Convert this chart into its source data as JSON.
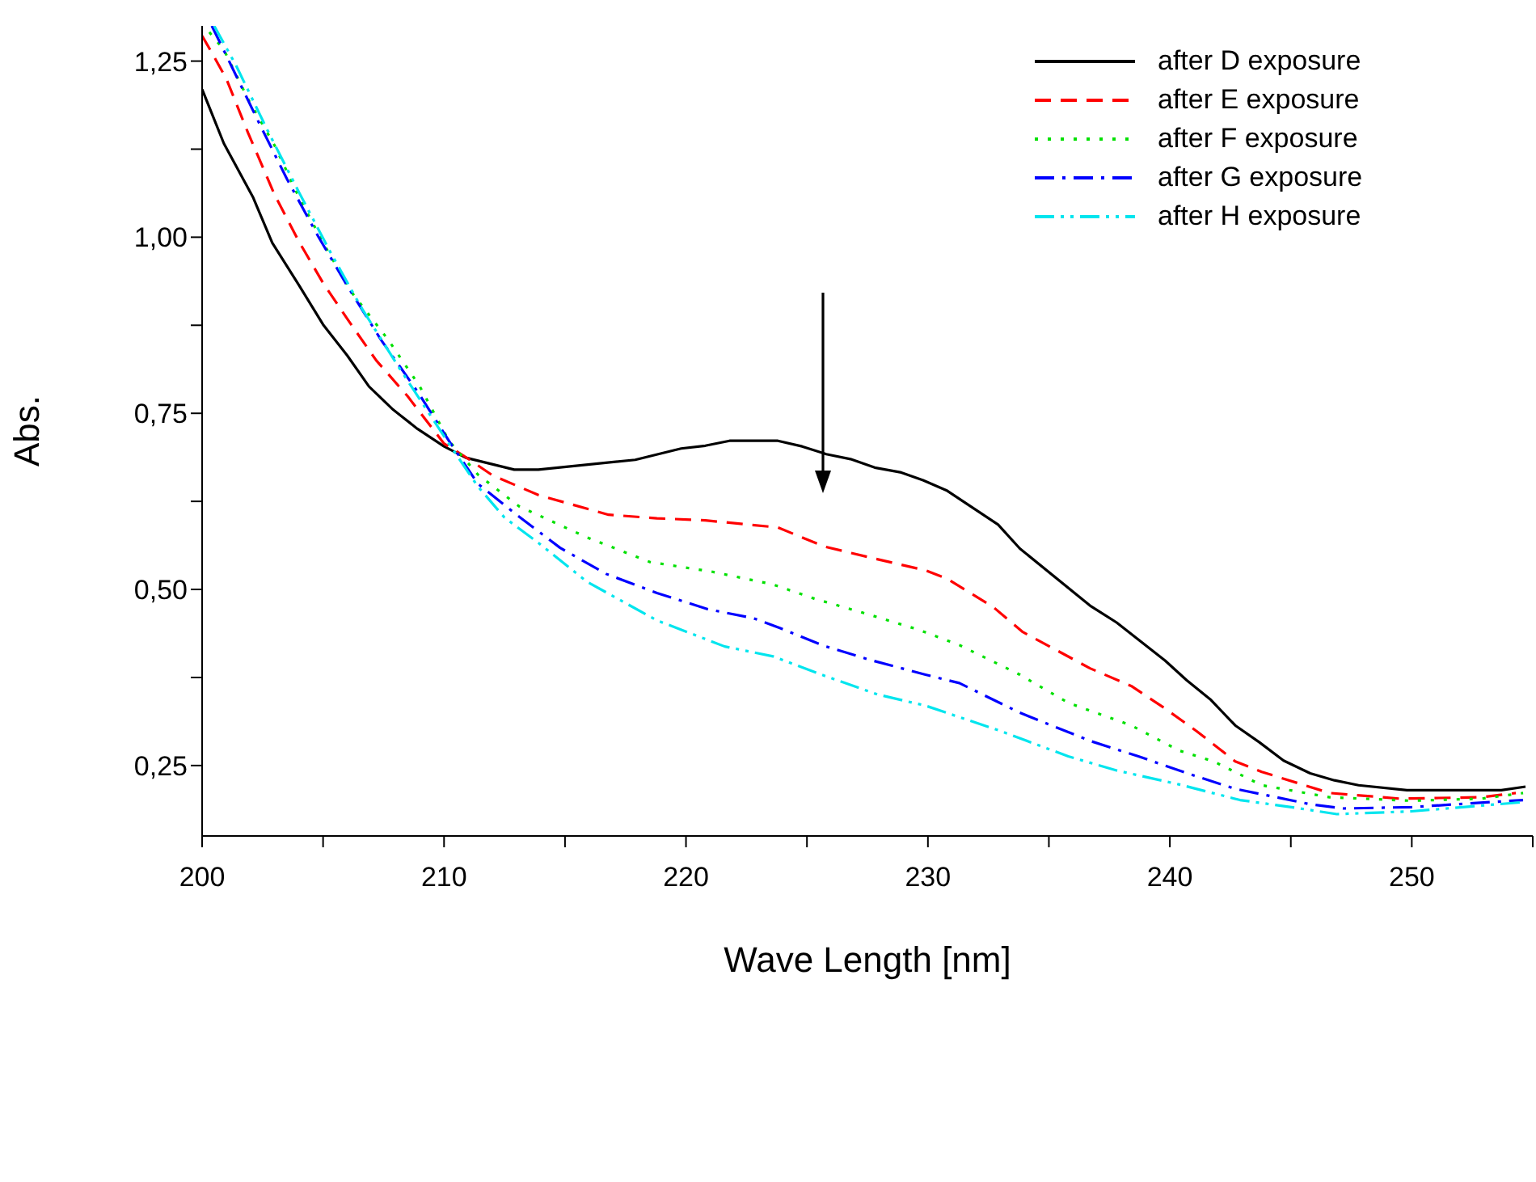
{
  "chart_data": {
    "type": "line",
    "xlabel": "Wave Length [nm]",
    "ylabel": "Abs.",
    "xlim": [
      200,
      255
    ],
    "ylim": [
      0.15,
      1.3
    ],
    "xticks": [
      200,
      {
        "value": 205,
        "label": null
      },
      210,
      {
        "value": 215,
        "label": null
      },
      220,
      {
        "value": 225,
        "label": null
      },
      230,
      {
        "value": 235,
        "label": null
      },
      240,
      {
        "value": 245,
        "label": null
      },
      250,
      {
        "value": 255,
        "label": null
      }
    ],
    "yticks": [
      {
        "value": 0.25,
        "label": "0,25"
      },
      {
        "value": 0.375,
        "label": null
      },
      {
        "value": 0.5,
        "label": "0,50"
      },
      {
        "value": 0.625,
        "label": null
      },
      {
        "value": 0.75,
        "label": "0,75"
      },
      {
        "value": 0.875,
        "label": null
      },
      {
        "value": 1.0,
        "label": "1,00"
      },
      {
        "value": 1.125,
        "label": null
      },
      {
        "value": 1.25,
        "label": "1,25"
      }
    ],
    "legend": "top right",
    "marker": "none",
    "series": [
      {
        "name": "after D exposure",
        "color": "#000000",
        "line_style": "solid",
        "x": [
          200,
          200.9,
          202.1,
          202.9,
          204,
          205,
          206,
          206.9,
          207.9,
          208.9,
          210,
          210.9,
          212.9,
          213.9,
          217.9,
          219.8,
          220.8,
          221.8,
          223.8,
          224.8,
          225.8,
          226.8,
          227.8,
          228.9,
          229.8,
          230.8,
          232.9,
          233.8,
          236.7,
          237.8,
          238.8,
          239.8,
          240.7,
          241.7,
          242.7,
          243.7,
          244.7,
          245.8,
          246.8,
          247.8,
          249.8,
          253.7,
          254.7
        ],
        "values": [
          1.21,
          1.133,
          1.057,
          0.992,
          0.932,
          0.876,
          0.832,
          0.788,
          0.755,
          0.728,
          0.703,
          0.687,
          0.67,
          0.67,
          0.684,
          0.7,
          0.704,
          0.711,
          0.711,
          0.703,
          0.692,
          0.685,
          0.673,
          0.666,
          0.655,
          0.64,
          0.592,
          0.558,
          0.477,
          0.453,
          0.426,
          0.399,
          0.371,
          0.343,
          0.307,
          0.283,
          0.257,
          0.239,
          0.229,
          0.222,
          0.215,
          0.215,
          0.22
        ]
      },
      {
        "name": "after E exposure",
        "color": "#ff0000",
        "line_style": "dashed",
        "x": [
          200,
          200.4,
          201,
          201.9,
          203,
          204,
          205,
          206,
          207.2,
          208.5,
          210,
          210.8,
          212,
          213.9,
          216.8,
          218.8,
          220.8,
          223.8,
          225.7,
          227.9,
          229.9,
          230.8,
          232.7,
          233.9,
          236.7,
          238.4,
          239.8,
          241.1,
          242.7,
          243.8,
          246.6,
          249.5,
          252.9,
          254.3
        ],
        "values": [
          1.286,
          1.262,
          1.225,
          1.148,
          1.06,
          0.994,
          0.935,
          0.884,
          0.825,
          0.774,
          0.707,
          0.69,
          0.662,
          0.634,
          0.606,
          0.601,
          0.598,
          0.588,
          0.561,
          0.543,
          0.527,
          0.515,
          0.475,
          0.44,
          0.388,
          0.363,
          0.331,
          0.299,
          0.256,
          0.241,
          0.211,
          0.203,
          0.205,
          0.211
        ]
      },
      {
        "name": "after F exposure",
        "color": "#00e000",
        "line_style": "dotted",
        "x": [
          200.3,
          200.9,
          201.9,
          203,
          204,
          205.1,
          206.2,
          207.7,
          209,
          210.2,
          211.4,
          213.1,
          215.9,
          218.5,
          221.1,
          223.6,
          225.3,
          227.3,
          229.6,
          231.3,
          233.8,
          235.8,
          238.4,
          240.4,
          241.8,
          243.8,
          246.6,
          250,
          252.9,
          254.6
        ],
        "values": [
          1.291,
          1.266,
          1.196,
          1.13,
          1.057,
          0.986,
          0.921,
          0.854,
          0.788,
          0.711,
          0.663,
          0.618,
          0.574,
          0.539,
          0.525,
          0.507,
          0.487,
          0.467,
          0.443,
          0.421,
          0.379,
          0.339,
          0.307,
          0.271,
          0.256,
          0.222,
          0.205,
          0.2,
          0.203,
          0.211
        ]
      },
      {
        "name": "after G exposure",
        "color": "#0000ff",
        "line_style": "dashdot",
        "x": [
          200.4,
          201.1,
          202.3,
          203.5,
          204.8,
          206,
          207.4,
          208.9,
          210.2,
          211.4,
          213,
          214.8,
          216.7,
          218.8,
          220.9,
          222.8,
          223.9,
          225.7,
          227.6,
          229.9,
          231.3,
          233.8,
          236.7,
          238.7,
          240.8,
          242.7,
          245.8,
          247.2,
          250,
          254.6
        ],
        "values": [
          1.3,
          1.251,
          1.166,
          1.083,
          1.001,
          0.931,
          0.854,
          0.781,
          0.711,
          0.65,
          0.606,
          0.559,
          0.522,
          0.495,
          0.472,
          0.459,
          0.445,
          0.42,
          0.4,
          0.379,
          0.367,
          0.325,
          0.285,
          0.263,
          0.238,
          0.217,
          0.195,
          0.189,
          0.191,
          0.201
        ]
      },
      {
        "name": "after H exposure",
        "color": "#00e5ee",
        "line_style": "dashdotdot",
        "x": [
          200.5,
          201.4,
          202.7,
          204,
          205.3,
          206.6,
          208.1,
          210.2,
          211.4,
          212.5,
          213.9,
          215.9,
          218.8,
          221.6,
          223.6,
          225.6,
          227.9,
          229.9,
          233,
          235.8,
          237.8,
          240.4,
          242.9,
          245.2,
          246.9,
          250,
          254.6
        ],
        "values": [
          1.3,
          1.244,
          1.152,
          1.064,
          0.979,
          0.899,
          0.817,
          0.707,
          0.646,
          0.602,
          0.566,
          0.511,
          0.456,
          0.419,
          0.405,
          0.379,
          0.351,
          0.335,
          0.299,
          0.263,
          0.243,
          0.223,
          0.201,
          0.19,
          0.181,
          0.185,
          0.198
        ]
      }
    ]
  }
}
